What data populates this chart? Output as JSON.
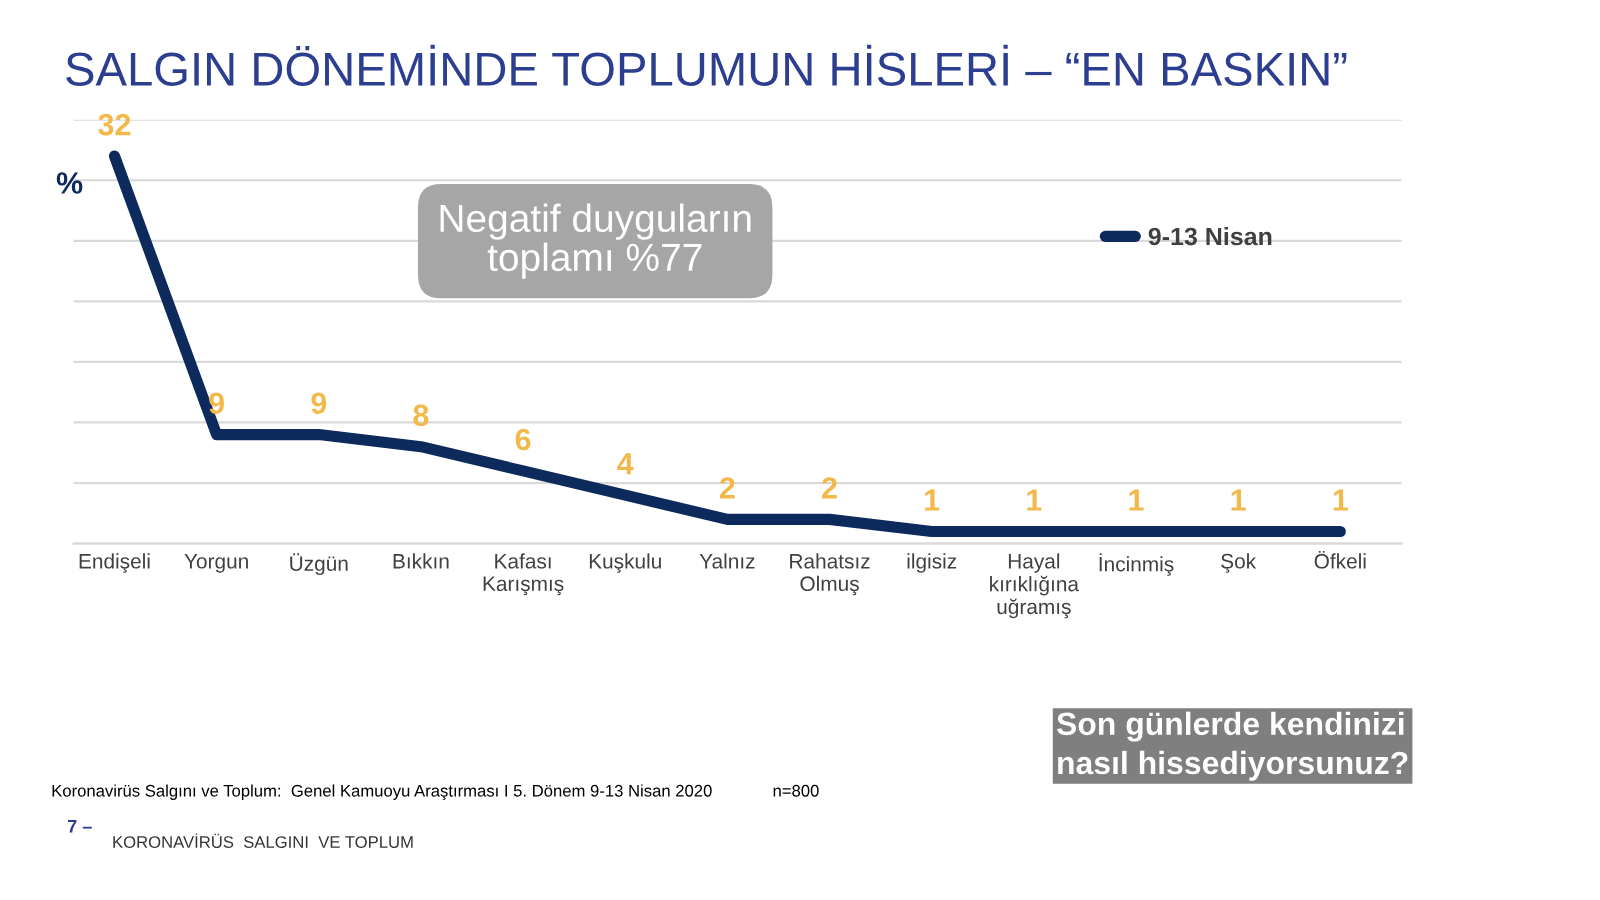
{
  "chart_data": {
    "type": "line",
    "title": "SALGIN DÖNEMİNDE TOPLUMUN HİSLERİ – “EN BASKIN”",
    "ylabel": "%",
    "categories": [
      "Endişeli",
      "Yorgun",
      "Üzgün",
      "Bıkkın",
      "Kafası\nKarışmış",
      "Kuşkulu",
      "Yalnız",
      "Rahatsız\nOlmuş",
      "ilgisiz",
      "Hayal\nkırıklığına\nuğramış",
      "İncinmiş",
      "Şok",
      "Öfkeli"
    ],
    "series": [
      {
        "name": "9-13 Nisan",
        "color": "#0d2a5c",
        "values": [
          32,
          9,
          9,
          8,
          6,
          4,
          2,
          2,
          1,
          1,
          1,
          1,
          1
        ]
      }
    ],
    "ylim": [
      0,
      35
    ],
    "yticks": [
      {
        "value": 0,
        "label": null
      },
      {
        "value": 5,
        "label": null
      },
      {
        "value": 10,
        "label": null
      },
      {
        "value": 15,
        "label": null
      },
      {
        "value": 20,
        "label": null
      },
      {
        "value": 25,
        "label": null
      },
      {
        "value": 30,
        "label": null
      },
      {
        "value": 35,
        "label": null
      }
    ],
    "grid": "y",
    "legend": "top right",
    "data_labels": true,
    "marker": "none",
    "line_style": "solid",
    "annotations": [
      "Negatif duyguların\ntoplamı %77",
      "Son günlerde kendinizi\nnasıl hissediyorsunuz?",
      "Koronavirüs Salgını ve Toplum:  Genel Kamuoyu Araştırması I 5. Dönem 9-13 Nisan 2020             n=800",
      "7 –",
      "KORONAVİRÜS  SALGINI  VE TOPLUM"
    ]
  }
}
